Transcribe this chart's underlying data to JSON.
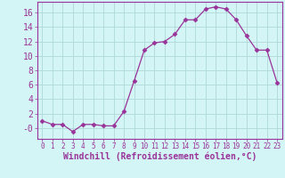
{
  "x": [
    0,
    1,
    2,
    3,
    4,
    5,
    6,
    7,
    8,
    9,
    10,
    11,
    12,
    13,
    14,
    15,
    16,
    17,
    18,
    19,
    20,
    21,
    22,
    23
  ],
  "y": [
    1.0,
    0.5,
    0.5,
    -0.5,
    0.5,
    0.5,
    0.3,
    0.3,
    2.3,
    6.5,
    10.8,
    11.8,
    12.0,
    13.0,
    15.0,
    15.0,
    16.5,
    16.8,
    16.5,
    15.0,
    12.8,
    10.8,
    10.8,
    6.3
  ],
  "line_color": "#993399",
  "marker": "D",
  "marker_size": 2.5,
  "bg_color": "#d4f5f5",
  "grid_color": "#b0d8d8",
  "xlabel": "Windchill (Refroidissement éolien,°C)",
  "xlabel_fontsize": 7,
  "tick_fontsize": 7,
  "ylim": [
    -1.5,
    17.5
  ],
  "yticks": [
    0,
    2,
    4,
    6,
    8,
    10,
    12,
    14,
    16
  ],
  "ytick_labels": [
    "-0",
    "2",
    "4",
    "6",
    "8",
    "10",
    "12",
    "14",
    "16"
  ],
  "xtick_labels": [
    "0",
    "1",
    "2",
    "3",
    "4",
    "5",
    "6",
    "7",
    "8",
    "9",
    "10",
    "11",
    "12",
    "13",
    "14",
    "15",
    "16",
    "17",
    "18",
    "19",
    "20",
    "21",
    "22",
    "23"
  ]
}
